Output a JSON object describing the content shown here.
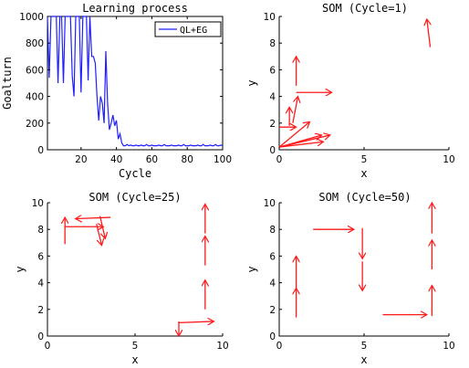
{
  "colors": {
    "line": "#1f1fff",
    "arrow": "#ff1a1a",
    "axis": "#000000"
  },
  "chart_data": [
    {
      "id": "learning",
      "type": "line",
      "title": "Learning process",
      "xlabel": "Cycle",
      "ylabel": "Goalturn",
      "xlim": [
        1,
        100
      ],
      "ylim": [
        0,
        1000
      ],
      "xticks": [
        20,
        40,
        60,
        80,
        100
      ],
      "yticks": [
        0,
        200,
        400,
        600,
        800,
        1000
      ],
      "grid": false,
      "legend": "top-right",
      "series": [
        {
          "name": "QL+EG",
          "color": "#1f1fff",
          "x": [
            1,
            2,
            3,
            4,
            5,
            6,
            7,
            8,
            9,
            10,
            11,
            12,
            13,
            14,
            15,
            16,
            17,
            18,
            19,
            20,
            21,
            22,
            23,
            24,
            25,
            26,
            27,
            28,
            29,
            30,
            31,
            32,
            33,
            34,
            35,
            36,
            37,
            38,
            39,
            40,
            41,
            42,
            43,
            44,
            45,
            46,
            47,
            48,
            49,
            50,
            51,
            52,
            53,
            54,
            55,
            56,
            57,
            58,
            59,
            60,
            61,
            62,
            63,
            64,
            65,
            66,
            67,
            68,
            69,
            70,
            71,
            72,
            73,
            74,
            75,
            76,
            77,
            78,
            79,
            80,
            81,
            82,
            83,
            84,
            85,
            86,
            87,
            88,
            89,
            90,
            91,
            92,
            93,
            94,
            95,
            96,
            97,
            98,
            99,
            100
          ],
          "y": [
            1000,
            540,
            1000,
            1000,
            1000,
            1000,
            500,
            1000,
            1000,
            500,
            1000,
            1000,
            1000,
            1000,
            550,
            400,
            1000,
            1000,
            1000,
            430,
            1000,
            1000,
            1000,
            520,
            1000,
            700,
            700,
            650,
            400,
            220,
            400,
            350,
            200,
            740,
            350,
            150,
            200,
            260,
            180,
            220,
            80,
            120,
            50,
            30,
            30,
            40,
            30,
            35,
            30,
            30,
            35,
            30,
            30,
            35,
            30,
            30,
            40,
            30,
            30,
            35,
            30,
            30,
            30,
            35,
            30,
            30,
            40,
            30,
            30,
            30,
            35,
            30,
            30,
            30,
            35,
            30,
            30,
            40,
            30,
            30,
            30,
            35,
            30,
            30,
            30,
            35,
            30,
            30,
            40,
            30,
            30,
            30,
            35,
            30,
            30,
            40,
            30,
            30,
            35,
            30
          ]
        }
      ]
    },
    {
      "id": "som1",
      "type": "quiver",
      "title": "SOM (Cycle=1)",
      "xlabel": "x",
      "ylabel": "y",
      "xlim": [
        0,
        10
      ],
      "ylim": [
        0,
        10
      ],
      "xticks": [
        0,
        5,
        10
      ],
      "yticks": [
        0,
        2,
        4,
        6,
        8,
        10
      ],
      "vectors": [
        {
          "x": 8.9,
          "y": 7.7,
          "dx": -0.2,
          "dy": 2.1
        },
        {
          "x": 1.0,
          "y": 4.8,
          "dx": 0.0,
          "dy": 2.2
        },
        {
          "x": 1.0,
          "y": 4.3,
          "dx": 2.1,
          "dy": 0.0
        },
        {
          "x": 0.8,
          "y": 2.0,
          "dx": 0.3,
          "dy": 2.0
        },
        {
          "x": 0.6,
          "y": 1.8,
          "dx": 0.0,
          "dy": 1.4
        },
        {
          "x": 0.0,
          "y": 1.7,
          "dx": 1.0,
          "dy": 0.0
        },
        {
          "x": 0.0,
          "y": 0.2,
          "dx": 1.8,
          "dy": 1.9
        },
        {
          "x": 0.0,
          "y": 0.2,
          "dx": 2.5,
          "dy": 0.9
        },
        {
          "x": 0.0,
          "y": 0.2,
          "dx": 3.0,
          "dy": 0.9
        },
        {
          "x": 0.0,
          "y": 0.2,
          "dx": 2.6,
          "dy": 0.4
        }
      ]
    },
    {
      "id": "som25",
      "type": "quiver",
      "title": "SOM (Cycle=25)",
      "xlabel": "x",
      "ylabel": "y",
      "xlim": [
        0,
        10
      ],
      "ylim": [
        0,
        10
      ],
      "xticks": [
        0,
        5,
        10
      ],
      "yticks": [
        0,
        2,
        4,
        6,
        8,
        10
      ],
      "vectors": [
        {
          "x": 1.0,
          "y": 6.9,
          "dx": 0.0,
          "dy": 2.0
        },
        {
          "x": 1.0,
          "y": 8.2,
          "dx": 2.2,
          "dy": 0.0
        },
        {
          "x": 3.6,
          "y": 8.9,
          "dx": -2.0,
          "dy": -0.1
        },
        {
          "x": 3.0,
          "y": 9.0,
          "dx": 0.3,
          "dy": -1.7
        },
        {
          "x": 2.8,
          "y": 8.4,
          "dx": 0.3,
          "dy": -1.6
        },
        {
          "x": 9.0,
          "y": 7.7,
          "dx": 0.0,
          "dy": 2.2
        },
        {
          "x": 9.0,
          "y": 5.3,
          "dx": 0.0,
          "dy": 2.2
        },
        {
          "x": 9.0,
          "y": 2.0,
          "dx": 0.0,
          "dy": 2.2
        },
        {
          "x": 7.5,
          "y": 1.0,
          "dx": 2.0,
          "dy": 0.1
        },
        {
          "x": 7.5,
          "y": 1.1,
          "dx": 0.0,
          "dy": -1.1
        }
      ]
    },
    {
      "id": "som50",
      "type": "quiver",
      "title": "SOM (Cycle=50)",
      "xlabel": "x",
      "ylabel": "y",
      "xlim": [
        0,
        10
      ],
      "ylim": [
        0,
        10
      ],
      "xticks": [
        0,
        5,
        10
      ],
      "yticks": [
        0,
        2,
        4,
        6,
        8,
        10
      ],
      "vectors": [
        {
          "x": 2.0,
          "y": 8.0,
          "dx": 2.4,
          "dy": 0.0
        },
        {
          "x": 4.9,
          "y": 8.1,
          "dx": 0.0,
          "dy": -2.3
        },
        {
          "x": 4.9,
          "y": 5.6,
          "dx": 0.0,
          "dy": -2.2
        },
        {
          "x": 1.0,
          "y": 3.6,
          "dx": 0.0,
          "dy": 2.4
        },
        {
          "x": 1.0,
          "y": 1.4,
          "dx": 0.0,
          "dy": 2.2
        },
        {
          "x": 6.1,
          "y": 1.6,
          "dx": 2.6,
          "dy": 0.0
        },
        {
          "x": 9.0,
          "y": 7.7,
          "dx": 0.0,
          "dy": 2.3
        },
        {
          "x": 9.0,
          "y": 5.0,
          "dx": 0.0,
          "dy": 2.2
        },
        {
          "x": 9.0,
          "y": 1.5,
          "dx": 0.0,
          "dy": 2.3
        }
      ]
    }
  ]
}
